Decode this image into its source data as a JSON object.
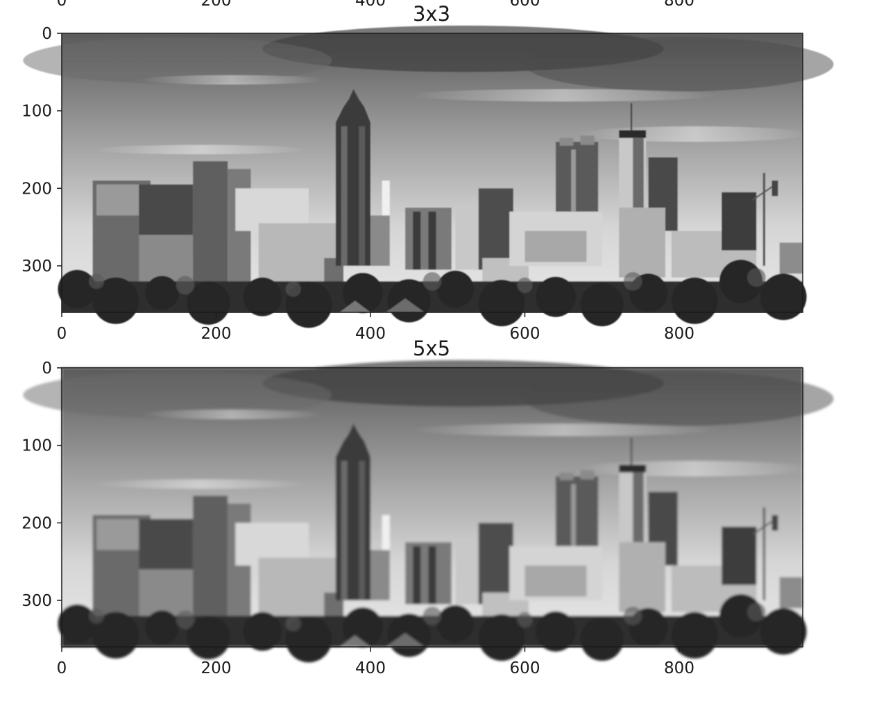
{
  "top_cropped_axis": {
    "x_tick_labels": [
      "0",
      "200",
      "400",
      "600",
      "800"
    ]
  },
  "panels": [
    {
      "title": "3x3",
      "description_kernel": "3x3",
      "x_tick_labels": [
        "0",
        "200",
        "400",
        "600",
        "800"
      ],
      "y_tick_labels": [
        "0",
        "100",
        "200",
        "300"
      ],
      "blur": 0.6
    },
    {
      "title": "5x5",
      "description_kernel": "5x5",
      "x_tick_labels": [
        "0",
        "200",
        "400",
        "600",
        "800"
      ],
      "y_tick_labels": [
        "0",
        "100",
        "200",
        "300"
      ],
      "blur": 1.6
    }
  ],
  "image_extent": {
    "x_range": [
      0,
      960
    ],
    "y_range": [
      0,
      360
    ]
  },
  "colors": {
    "ink": "#1a1a1a",
    "background": "#ffffff"
  }
}
